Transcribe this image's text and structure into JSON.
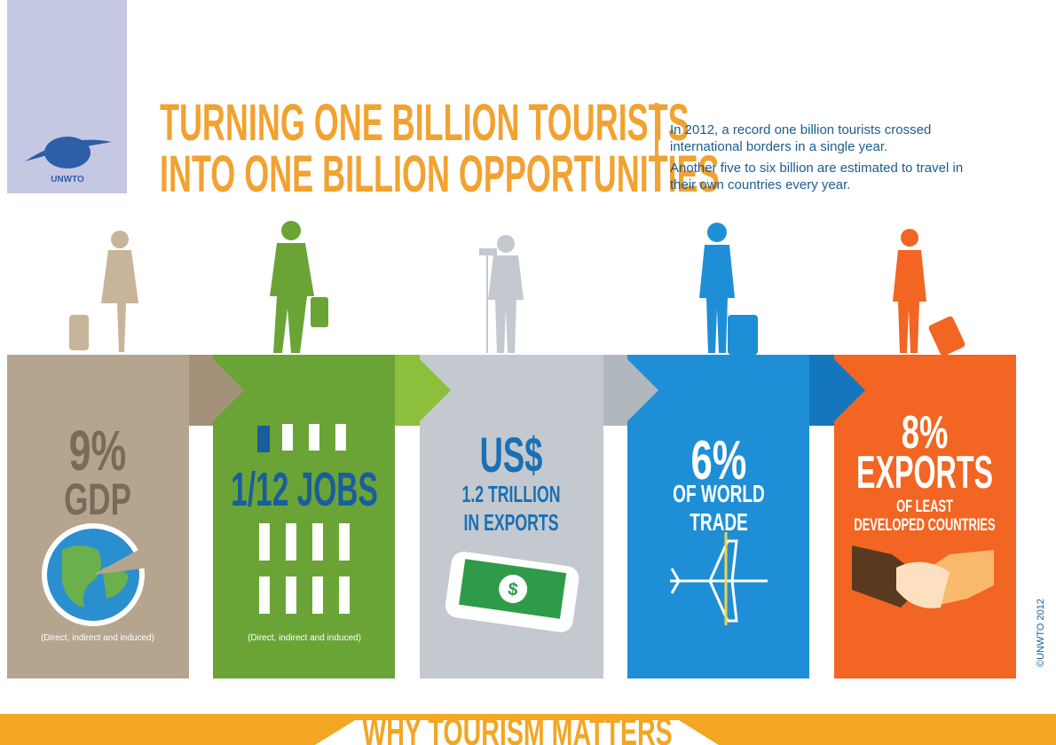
{
  "logo": "UNWTO",
  "title": [
    "TURNING ONE BILLION TOURISTS",
    "INTO ONE BILLION OPPORTUNITIES"
  ],
  "intro": [
    "In 2012, a record one billion tourists crossed",
    "international borders in a single year.",
    "Another five to six billion are estimated to travel in",
    "their own countries every year."
  ],
  "panels": [
    {
      "lines": [
        "9%",
        "GDP"
      ],
      "note": "(Direct, indirect and induced)"
    },
    {
      "lines": [
        "1/12 JOBS"
      ],
      "note": "(Direct, indirect and induced)"
    },
    {
      "lines": [
        "US$",
        "1.2 TRILLION",
        "IN EXPORTS"
      ]
    },
    {
      "lines": [
        "6%",
        "OF WORLD",
        "TRADE"
      ]
    },
    {
      "lines": [
        "8%",
        "EXPORTS",
        "OF LEAST",
        "DEVELOPED COUNTRIES"
      ]
    }
  ],
  "copyright": "©UNWTO 2012",
  "footer": "WHY TOURISM MATTERS"
}
